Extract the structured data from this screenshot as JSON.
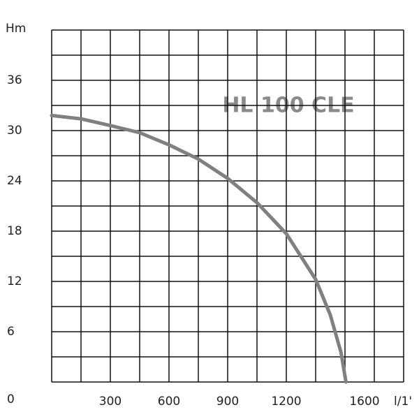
{
  "chart_data": {
    "type": "line",
    "title": "HL 100 CLE",
    "x_label": "l/1'",
    "y_label": "Hm",
    "x": [
      0,
      150,
      300,
      450,
      600,
      750,
      900,
      1050,
      1200,
      1350,
      1425,
      1480,
      1505
    ],
    "series": [
      {
        "name": "HL 100 CLE",
        "color": "#808080",
        "values": [
          31.8,
          31.4,
          30.6,
          29.75,
          28.3,
          26.6,
          24.3,
          21.4,
          17.7,
          12.25,
          8,
          3.5,
          0
        ]
      }
    ],
    "xlim": [
      0,
      1800
    ],
    "ylim": [
      0,
      42
    ],
    "xticks": [
      300,
      600,
      900,
      1200,
      1600
    ],
    "yticks": [
      0,
      6,
      12,
      18,
      24,
      30,
      36
    ],
    "xgrid": [
      0,
      150,
      300,
      450,
      600,
      750,
      900,
      1050,
      1200,
      1350,
      1500,
      1650,
      1800
    ],
    "ygrid": [
      0,
      3,
      6,
      9,
      12,
      15,
      18,
      21,
      24,
      27,
      30,
      33,
      36,
      39,
      42
    ],
    "grid": true
  }
}
